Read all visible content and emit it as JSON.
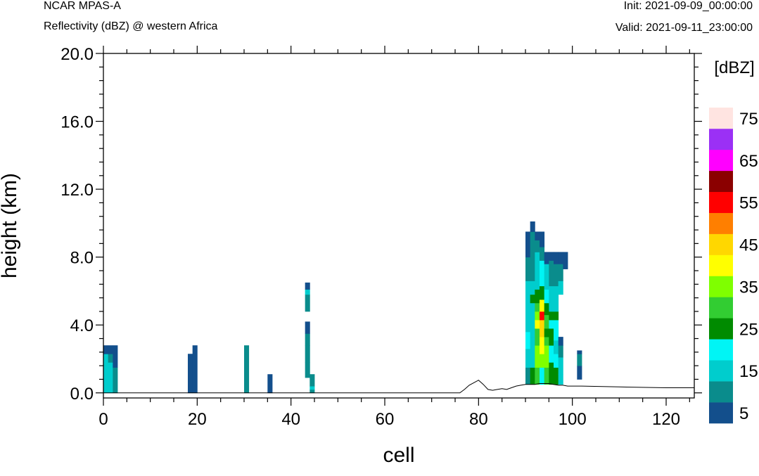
{
  "header": {
    "model": "NCAR MPAS-A",
    "field": "Reflectivity (dBZ) @ western Africa",
    "init": "Init: 2021-09-09_00:00:00",
    "valid": "Valid: 2021-09-11_23:00:00"
  },
  "chart_data": {
    "type": "heatmap",
    "xlabel": "cell",
    "ylabel": "height (km)",
    "xlim": [
      0,
      126
    ],
    "ylim": [
      -0.3,
      20.0
    ],
    "x_ticks": [
      "0",
      "20",
      "40",
      "60",
      "80",
      "100",
      "120"
    ],
    "x_tick_values": [
      0,
      20,
      40,
      60,
      80,
      100,
      120
    ],
    "y_ticks": [
      "0.0",
      "4.0",
      "8.0",
      "12.0",
      "16.0",
      "20.0"
    ],
    "y_tick_values": [
      0,
      4,
      8,
      12,
      16,
      20
    ],
    "colorbar": {
      "title": "[dBZ]",
      "labels": [
        "5",
        "15",
        "25",
        "35",
        "45",
        "55",
        "65",
        "75"
      ],
      "levels": [
        5,
        10,
        15,
        20,
        25,
        30,
        35,
        40,
        45,
        50,
        55,
        60,
        65,
        70,
        75
      ],
      "colors": [
        "#134f8c",
        "#0a8c8c",
        "#00cdcd",
        "#00f5f5",
        "#008b00",
        "#32cd32",
        "#7fff00",
        "#ffff00",
        "#ffd700",
        "#ff7f00",
        "#ff0000",
        "#8b0000",
        "#ff00ff",
        "#9b30f5",
        "#ffe4e1"
      ]
    },
    "terrain": {
      "x": [
        0,
        76,
        77,
        78,
        79,
        80,
        81,
        82,
        83,
        84,
        85,
        86,
        87,
        88,
        89,
        90,
        91,
        92,
        93,
        94,
        95,
        96,
        97,
        98,
        99,
        100,
        101,
        102,
        110,
        120,
        126
      ],
      "height": [
        0,
        0,
        0.2,
        0.45,
        0.6,
        0.75,
        0.5,
        0.2,
        0.15,
        0.2,
        0.25,
        0.2,
        0.3,
        0.4,
        0.45,
        0.5,
        0.5,
        0.5,
        0.55,
        0.55,
        0.55,
        0.5,
        0.45,
        0.45,
        0.4,
        0.4,
        0.4,
        0.4,
        0.35,
        0.3,
        0.3
      ]
    },
    "echo_columns": [
      {
        "x": 0,
        "cells": [
          [
            0,
            2.3,
            15
          ],
          [
            2.3,
            2.8,
            5
          ]
        ]
      },
      {
        "x": 1,
        "cells": [
          [
            0,
            1.8,
            15
          ],
          [
            1.8,
            2.3,
            10
          ],
          [
            2.3,
            2.8,
            5
          ]
        ]
      },
      {
        "x": 2,
        "cells": [
          [
            0,
            1.5,
            10
          ],
          [
            1.5,
            2.8,
            5
          ]
        ]
      },
      {
        "x": 18,
        "cells": [
          [
            0,
            2.3,
            5
          ]
        ]
      },
      {
        "x": 19,
        "cells": [
          [
            0,
            2.8,
            5
          ]
        ]
      },
      {
        "x": 30,
        "cells": [
          [
            0,
            2.8,
            10
          ]
        ]
      },
      {
        "x": 35,
        "cells": [
          [
            0,
            1.1,
            5
          ]
        ]
      },
      {
        "x": 43,
        "cells": [
          [
            0.9,
            1.8,
            10
          ],
          [
            1.8,
            2.8,
            10
          ],
          [
            2.8,
            3.5,
            10
          ],
          [
            3.5,
            4.2,
            5
          ],
          [
            4.8,
            5.8,
            10
          ],
          [
            5.8,
            6.1,
            15
          ],
          [
            6.1,
            6.5,
            5
          ]
        ]
      },
      {
        "x": 44,
        "cells": [
          [
            0,
            0.2,
            10
          ],
          [
            0.2,
            0.4,
            15
          ],
          [
            0.4,
            1.1,
            10
          ]
        ]
      },
      {
        "x": 90,
        "cells": [
          [
            0.5,
            1.5,
            10
          ],
          [
            1.5,
            2.6,
            15
          ],
          [
            2.6,
            3.6,
            20
          ],
          [
            3.6,
            4.6,
            15
          ],
          [
            4.6,
            6.6,
            15
          ],
          [
            6.6,
            7.0,
            10
          ],
          [
            7.0,
            8.0,
            10
          ],
          [
            8.0,
            9.5,
            5
          ]
        ]
      },
      {
        "x": 91,
        "cells": [
          [
            0.5,
            1.5,
            25
          ],
          [
            1.5,
            2.3,
            15
          ],
          [
            2.3,
            3.3,
            15
          ],
          [
            3.3,
            5.3,
            15
          ],
          [
            5.3,
            5.8,
            25
          ],
          [
            5.8,
            6.6,
            15
          ],
          [
            6.6,
            7.1,
            10
          ],
          [
            7.1,
            9.5,
            10
          ],
          [
            9.5,
            10.1,
            5
          ]
        ]
      },
      {
        "x": 92,
        "cells": [
          [
            0.5,
            1.5,
            30
          ],
          [
            1.5,
            2.8,
            35
          ],
          [
            2.8,
            3.8,
            30
          ],
          [
            3.8,
            4.3,
            40
          ],
          [
            4.3,
            4.8,
            35
          ],
          [
            4.8,
            5.3,
            30
          ],
          [
            5.3,
            6.1,
            25
          ],
          [
            6.1,
            7.1,
            15
          ],
          [
            7.1,
            8.3,
            15
          ],
          [
            8.3,
            9.0,
            10
          ],
          [
            9.0,
            9.5,
            5
          ]
        ]
      },
      {
        "x": 93,
        "cells": [
          [
            0.5,
            1.5,
            20
          ],
          [
            1.5,
            2.3,
            35
          ],
          [
            2.3,
            3.3,
            40
          ],
          [
            3.3,
            4.3,
            45
          ],
          [
            4.3,
            4.8,
            55
          ],
          [
            4.8,
            5.5,
            40
          ],
          [
            5.5,
            6.3,
            25
          ],
          [
            6.3,
            7.8,
            20
          ],
          [
            7.8,
            8.6,
            10
          ],
          [
            8.6,
            9.5,
            5
          ]
        ]
      },
      {
        "x": 94,
        "cells": [
          [
            0.5,
            1.5,
            30
          ],
          [
            1.5,
            2.8,
            35
          ],
          [
            2.8,
            3.3,
            30
          ],
          [
            3.3,
            3.8,
            25
          ],
          [
            3.8,
            4.6,
            30
          ],
          [
            4.6,
            5.3,
            25
          ],
          [
            5.3,
            6.1,
            20
          ],
          [
            6.1,
            7.1,
            15
          ],
          [
            7.1,
            7.6,
            15
          ],
          [
            7.6,
            8.3,
            5
          ]
        ]
      },
      {
        "x": 95,
        "cells": [
          [
            0.5,
            1.8,
            25
          ],
          [
            1.8,
            2.8,
            20
          ],
          [
            2.8,
            3.8,
            25
          ],
          [
            3.8,
            4.3,
            20
          ],
          [
            4.3,
            4.8,
            25
          ],
          [
            4.8,
            6.3,
            15
          ],
          [
            6.3,
            7.3,
            10
          ],
          [
            7.3,
            7.8,
            10
          ],
          [
            7.8,
            8.3,
            5
          ]
        ]
      },
      {
        "x": 96,
        "cells": [
          [
            0.5,
            1.5,
            25
          ],
          [
            1.5,
            2.3,
            20
          ],
          [
            2.3,
            3.1,
            15
          ],
          [
            3.1,
            4.3,
            20
          ],
          [
            4.3,
            4.8,
            25
          ],
          [
            4.8,
            6.3,
            15
          ],
          [
            6.3,
            7.6,
            10
          ],
          [
            7.6,
            8.3,
            5
          ]
        ]
      },
      {
        "x": 97,
        "cells": [
          [
            0.5,
            1.1,
            15
          ],
          [
            1.1,
            2.1,
            15
          ],
          [
            2.1,
            2.8,
            10
          ],
          [
            2.8,
            3.3,
            5
          ],
          [
            5.8,
            6.6,
            15
          ],
          [
            6.6,
            7.6,
            10
          ],
          [
            7.6,
            8.3,
            5
          ]
        ]
      },
      {
        "x": 98,
        "cells": [
          [
            7.3,
            8.3,
            5
          ]
        ]
      },
      {
        "x": 101,
        "cells": [
          [
            0.8,
            1.6,
            5
          ],
          [
            1.6,
            2.3,
            10
          ],
          [
            2.3,
            2.5,
            5
          ]
        ]
      }
    ]
  }
}
